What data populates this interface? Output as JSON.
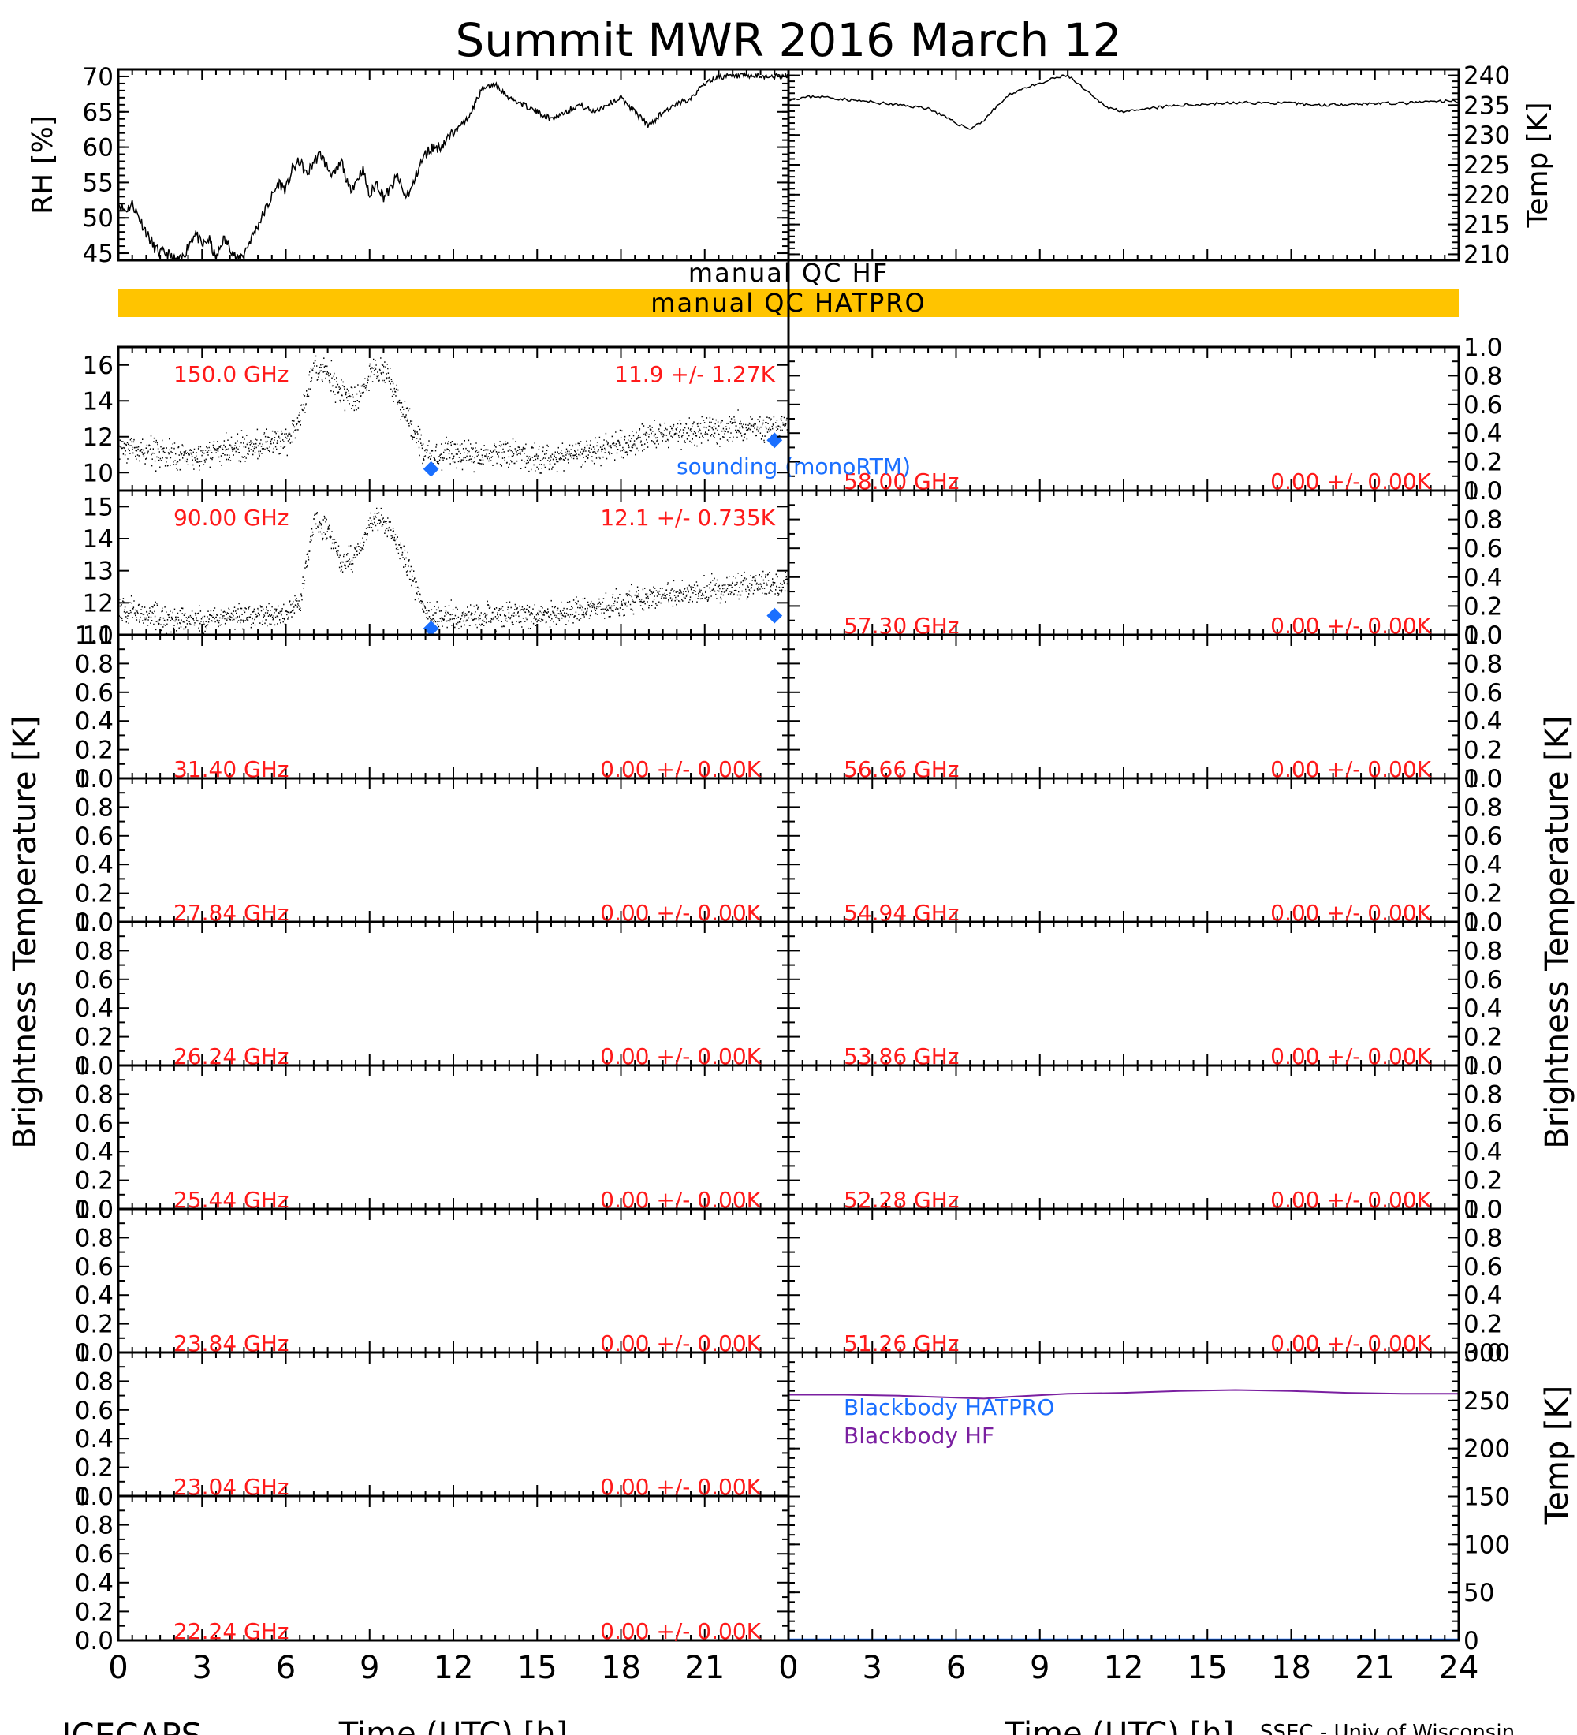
{
  "figure": {
    "title": "Summit MWR 2016 March 12",
    "footer_left": "ICECAPS",
    "footer_right": "SSEC - Univ of Wisconsin",
    "xlabel": "Time (UTC) [h]",
    "left_ylabel": "Brightness Temperature [K]",
    "right_ylabel": "Brightness Temperature [K]",
    "blackbody_ylabel": "Temp [K]",
    "colors": {
      "axis": "#000000",
      "red": "#ff1a1a",
      "blue": "#1a6fff",
      "purple": "#7a1fa0",
      "qc_bar": "#ffc400",
      "data": "#000000"
    },
    "qc": {
      "hf_label": "manual QC HF",
      "hatpro_label": "manual QC HATPRO"
    }
  },
  "chart_data": [
    {
      "type": "line",
      "panel": "rh",
      "ylabel": "RH [%]",
      "xlim": [
        0,
        12
      ],
      "ylim": [
        44,
        71
      ],
      "yticks": [
        45,
        50,
        55,
        60,
        65,
        70
      ],
      "x": [
        0,
        0.25,
        0.5,
        0.75,
        1,
        1.25,
        1.5,
        1.75,
        2,
        2.25,
        2.5,
        2.75,
        3,
        3.25,
        3.5,
        3.75,
        4,
        4.25,
        4.5,
        4.75,
        5,
        5.25,
        5.5,
        5.75,
        6,
        6.25,
        6.5,
        6.75,
        7,
        7.25,
        7.5,
        7.75,
        8,
        8.25,
        8.5,
        8.75,
        9,
        9.25,
        9.5,
        9.75,
        10,
        10.25,
        10.5,
        10.75,
        11,
        11.25,
        11.5,
        11.75,
        12
      ],
      "values": [
        52,
        51,
        52,
        50,
        48,
        46,
        45,
        45,
        44,
        44,
        46,
        48,
        46,
        47,
        44,
        47,
        46,
        44,
        45,
        47,
        49,
        51,
        53,
        55,
        54,
        57,
        58,
        56,
        58,
        59,
        57,
        56,
        58,
        54,
        55,
        57,
        53,
        55,
        53,
        54,
        56,
        53,
        54,
        57,
        59,
        60,
        60,
        61,
        62
      ]
    },
    {
      "type": "line",
      "panel": "rh",
      "xlim": [
        12,
        24
      ],
      "ylim": [
        44,
        71
      ],
      "x": [
        12,
        12.5,
        13,
        13.5,
        14,
        14.5,
        15,
        15.5,
        16,
        16.5,
        17,
        17.5,
        18,
        18.5,
        19,
        19.5,
        20,
        20.5,
        21,
        21.5,
        22,
        22.5,
        23,
        23.5,
        24
      ],
      "values": [
        62,
        64,
        68,
        69,
        67,
        66,
        65,
        64,
        65,
        66,
        65,
        66,
        67,
        65,
        63,
        65,
        66,
        67,
        69,
        70,
        70,
        70,
        70,
        70,
        70
      ]
    },
    {
      "type": "line",
      "panel": "temp",
      "ylabel": "Temp [K]",
      "xlim": [
        0,
        24
      ],
      "ylim": [
        209,
        241
      ],
      "yticks": [
        210,
        215,
        220,
        225,
        230,
        235,
        240
      ],
      "x": [
        0,
        1,
        2,
        3,
        4,
        5,
        6,
        6.5,
        7,
        7.5,
        8,
        8.5,
        9,
        9.5,
        10,
        10.5,
        11,
        11.5,
        12,
        12.5,
        13,
        14,
        15,
        16,
        17,
        18,
        19,
        20,
        21,
        22,
        23,
        24
      ],
      "values": [
        236,
        236.5,
        236,
        235.5,
        235,
        234.5,
        232,
        231,
        232.5,
        235,
        237,
        238,
        238.5,
        239.5,
        240,
        238,
        236,
        234.5,
        234,
        234,
        234.5,
        235,
        235.2,
        235.4,
        235.4,
        235.3,
        235,
        235.2,
        235.3,
        235.3,
        235.6,
        235.7
      ]
    },
    {
      "type": "scatter",
      "panel": "tb",
      "label": "150.0 GHz",
      "stat": "11.9 +/-  1.27K",
      "xlim": [
        0,
        24
      ],
      "ylim": [
        9,
        17
      ],
      "yticks": [
        10,
        12,
        14,
        16
      ],
      "noise": 1.0,
      "x": [
        0,
        1,
        2,
        3,
        4,
        5,
        6,
        6.5,
        7,
        7.5,
        8,
        8.5,
        9,
        9.5,
        10,
        10.5,
        11,
        11.5,
        12,
        13,
        14,
        15,
        16,
        17,
        18,
        19,
        20,
        21,
        22,
        23,
        24
      ],
      "values": [
        11.5,
        11.2,
        11,
        11,
        11.3,
        11.5,
        11.8,
        13,
        16,
        15.5,
        14.5,
        14,
        15.5,
        16,
        14,
        12.5,
        11,
        10.8,
        11,
        11,
        11.2,
        10.8,
        11,
        11.3,
        11.6,
        12,
        12.2,
        12.3,
        12.5,
        12.5,
        12.6
      ],
      "sounding_label": "sounding (monoRTM)",
      "sounding_points": [
        {
          "x": 11.2,
          "y": 10.2
        },
        {
          "x": 23.5,
          "y": 11.8
        }
      ]
    },
    {
      "type": "scatter",
      "panel": "tb",
      "label": "90.00 GHz",
      "stat": "12.1 +/- 0.735K",
      "xlim": [
        0,
        24
      ],
      "ylim": [
        11,
        15.5
      ],
      "yticks": [
        11,
        12,
        13,
        14,
        15
      ],
      "noise": 0.5,
      "x": [
        0,
        1,
        2,
        3,
        4,
        5,
        6,
        6.5,
        7,
        7.5,
        8,
        8.5,
        9,
        9.5,
        10,
        10.5,
        11,
        11.5,
        12,
        13,
        14,
        15,
        16,
        17,
        18,
        19,
        20,
        21,
        22,
        23,
        24
      ],
      "values": [
        11.8,
        11.6,
        11.5,
        11.5,
        11.6,
        11.6,
        11.7,
        12,
        14.7,
        14.2,
        13.2,
        13.5,
        14.5,
        14.6,
        13.8,
        12.8,
        11.7,
        11.6,
        11.6,
        11.6,
        11.7,
        11.6,
        11.7,
        11.9,
        12,
        12.2,
        12.3,
        12.4,
        12.5,
        12.6,
        12.6
      ],
      "sounding_points": [
        {
          "x": 11.2,
          "y": 11.2
        },
        {
          "x": 23.5,
          "y": 11.6
        }
      ]
    },
    {
      "type": "scatter",
      "panel": "tb",
      "label": "31.40 GHz",
      "stat": "0.00 +/-  0.00K",
      "ylim": [
        0,
        1
      ],
      "values": []
    },
    {
      "type": "scatter",
      "panel": "tb",
      "label": "27.84 GHz",
      "stat": "0.00 +/-  0.00K",
      "ylim": [
        0,
        1
      ],
      "values": []
    },
    {
      "type": "scatter",
      "panel": "tb",
      "label": "26.24 GHz",
      "stat": "0.00 +/-  0.00K",
      "ylim": [
        0,
        1
      ],
      "values": []
    },
    {
      "type": "scatter",
      "panel": "tb",
      "label": "25.44 GHz",
      "stat": "0.00 +/-  0.00K",
      "ylim": [
        0,
        1
      ],
      "values": []
    },
    {
      "type": "scatter",
      "panel": "tb",
      "label": "23.84 GHz",
      "stat": "0.00 +/-  0.00K",
      "ylim": [
        0,
        1
      ],
      "values": []
    },
    {
      "type": "scatter",
      "panel": "tb",
      "label": "23.04 GHz",
      "stat": "0.00 +/-  0.00K",
      "ylim": [
        0,
        1
      ],
      "values": []
    },
    {
      "type": "scatter",
      "panel": "tb",
      "label": "22.24 GHz",
      "stat": "0.00 +/-  0.00K",
      "ylim": [
        0,
        1
      ],
      "values": []
    },
    {
      "type": "scatter",
      "panel": "tb",
      "label": "58.00 GHz",
      "stat": "0.00 +/-  0.00K",
      "ylim": [
        0,
        1
      ],
      "values": []
    },
    {
      "type": "scatter",
      "panel": "tb",
      "label": "57.30 GHz",
      "stat": "0.00 +/-  0.00K",
      "ylim": [
        0,
        1
      ],
      "values": []
    },
    {
      "type": "scatter",
      "panel": "tb",
      "label": "56.66 GHz",
      "stat": "0.00 +/-  0.00K",
      "ylim": [
        0,
        1
      ],
      "values": []
    },
    {
      "type": "scatter",
      "panel": "tb",
      "label": "54.94 GHz",
      "stat": "0.00 +/-  0.00K",
      "ylim": [
        0,
        1
      ],
      "values": []
    },
    {
      "type": "scatter",
      "panel": "tb",
      "label": "53.86 GHz",
      "stat": "0.00 +/-  0.00K",
      "ylim": [
        0,
        1
      ],
      "values": []
    },
    {
      "type": "scatter",
      "panel": "tb",
      "label": "52.28 GHz",
      "stat": "0.00 +/-  0.00K",
      "ylim": [
        0,
        1
      ],
      "values": []
    },
    {
      "type": "scatter",
      "panel": "tb",
      "label": "51.26 GHz",
      "stat": "0.00 +/-  0.00K",
      "ylim": [
        0,
        1
      ],
      "values": []
    },
    {
      "type": "line",
      "panel": "blackbody",
      "xlim": [
        0,
        24
      ],
      "ylim": [
        0,
        300
      ],
      "yticks": [
        0,
        50,
        100,
        150,
        200,
        250,
        300
      ],
      "series": [
        {
          "name": "Blackbody HATPRO",
          "x": [
            0,
            24
          ],
          "values": [
            1,
            1
          ]
        },
        {
          "name": "Blackbody HF",
          "x": [
            0,
            2,
            4,
            6,
            7,
            8,
            10,
            12,
            14,
            16,
            18,
            20,
            22,
            24
          ],
          "values": [
            256,
            256,
            255,
            253,
            252,
            254,
            257,
            258,
            260,
            261,
            260,
            258,
            257,
            257
          ]
        }
      ]
    }
  ],
  "axes": {
    "hour_ticks": [
      "0",
      "3",
      "6",
      "9",
      "12",
      "15",
      "18",
      "21",
      "24"
    ],
    "unit_ticks": [
      "0.0",
      "0.2",
      "0.4",
      "0.6",
      "0.8",
      "1.0"
    ]
  }
}
